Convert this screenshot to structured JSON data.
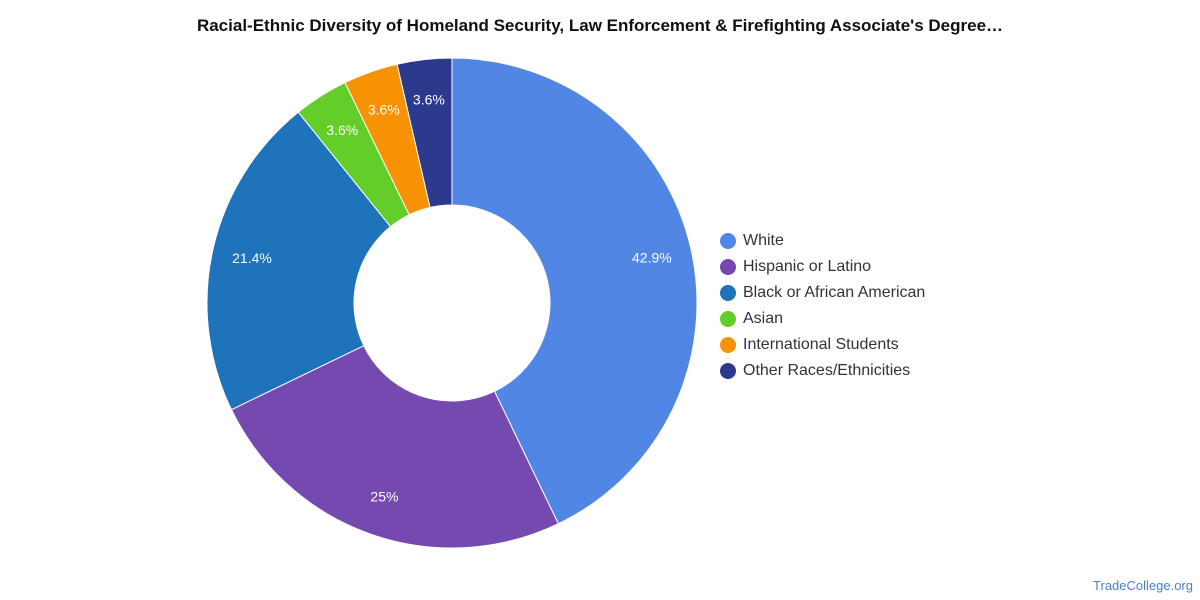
{
  "chart_data": {
    "type": "pie",
    "title": "Racial-Ethnic Diversity of Homeland Security, Law Enforcement & Firefighting Associate's Degree…",
    "legend_position": "right",
    "donut": true,
    "categories": [
      "White",
      "Hispanic or Latino",
      "Black or African American",
      "Asian",
      "International Students",
      "Other Races/Ethnicities"
    ],
    "values": [
      42.9,
      25,
      21.4,
      3.6,
      3.6,
      3.6
    ],
    "labels": [
      "42.9%",
      "25%",
      "21.4%",
      "3.6%",
      "3.6%",
      "3.6%"
    ],
    "colors": [
      "#5286e4",
      "#7449b0",
      "#1e73bb",
      "#63cd2a",
      "#f79204",
      "#2c3a8e"
    ]
  },
  "footer": {
    "source": "TradeCollege.org"
  }
}
